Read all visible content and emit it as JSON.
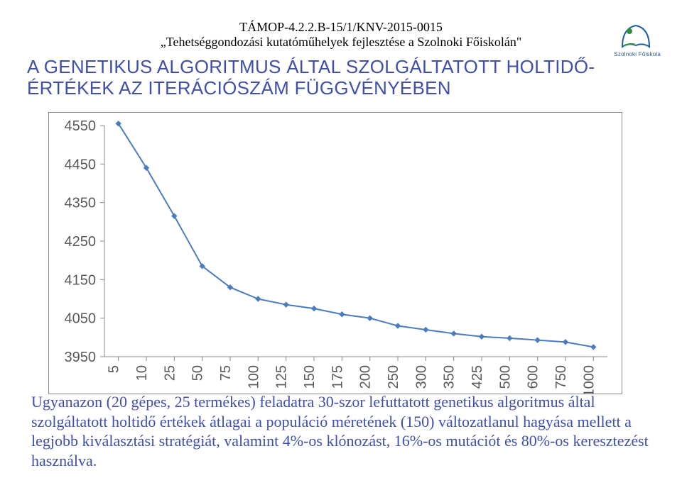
{
  "header": {
    "project_code": "TÁMOP-4.2.2.B-15/1/KNV-2015-0015",
    "tagline": "„Tehetséggondozási kutatóműhelyek fejlesztése a Szolnoki Főiskolán\"",
    "logo_caption": "Szolnoki Főiskola"
  },
  "title": {
    "line1": "A GENETIKUS ALGORITMUS ÁLTAL SZOLGÁLTATOTT HOLTIDŐ-",
    "line2": "ÉRTÉKEK AZ ITERÁCIÓSZÁM FÜGGVÉNYÉBEN"
  },
  "chart": {
    "type": "line",
    "categories": [
      "5",
      "10",
      "25",
      "50",
      "75",
      "100",
      "125",
      "150",
      "175",
      "200",
      "250",
      "300",
      "350",
      "425",
      "500",
      "600",
      "750",
      "1000"
    ],
    "values": [
      4555,
      4440,
      4315,
      4185,
      4130,
      4100,
      4085,
      4075,
      4060,
      4050,
      4030,
      4020,
      4010,
      4002,
      3998,
      3993,
      3988,
      3975
    ],
    "line_color": "#4a7dbf",
    "marker_color": "#4a7dbf",
    "marker_style": "diamond",
    "marker_size": 7,
    "line_width": 2,
    "ylim": [
      3950,
      4550
    ],
    "ytick_step": 100,
    "yticks": [
      "3950",
      "4050",
      "4150",
      "4250",
      "4350",
      "4450",
      "4550"
    ],
    "axis_color": "#8a8a8a",
    "tick_font_size": 20,
    "tick_font_color": "#595959",
    "xlabel_font_size": 20,
    "xlabel_rotation": -90,
    "background_color": "#ffffff",
    "grid": false,
    "border_color": "#8a8a8a"
  },
  "footer": {
    "text": "Ugyanazon (20 gépes, 25 termékes) feladatra 30-szor lefuttatott genetikus algoritmus által szolgáltatott holtidő értékek átlagai a populáció méretének (150) változatlanul hagyása mellett a legjobb kiválasztási stratégiát, valamint 4%-os klónozást, 16%-os mutációt és 80%-os keresztezést használva."
  },
  "colors": {
    "title_color": "#3f4faa",
    "header_text": "#000000",
    "logo_blue": "#1e5fa9",
    "logo_green": "#2e8f3f"
  }
}
